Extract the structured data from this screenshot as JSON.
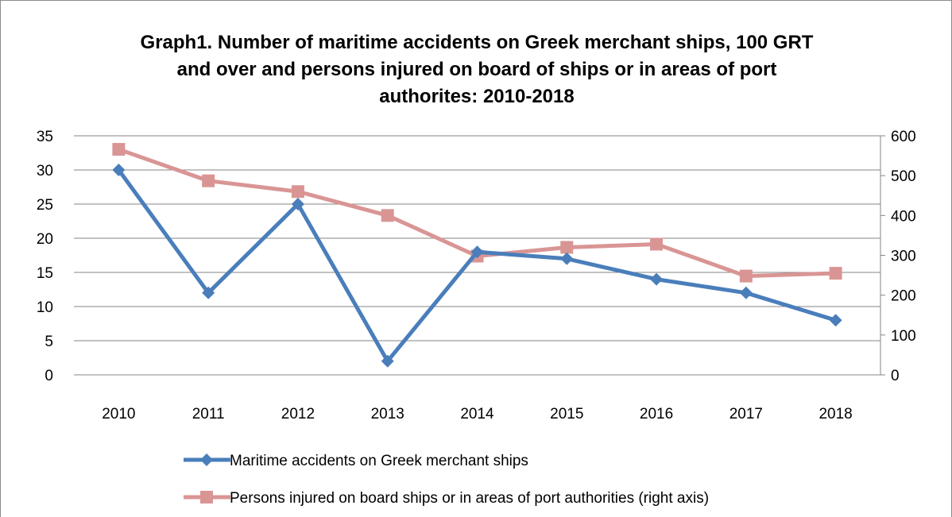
{
  "chart_data": {
    "type": "line",
    "title_lines": [
      "Graph1. Number of maritime accidents on Greek merchant ships, 100 GRT",
      "and over and persons injured on board of ships or in areas of port",
      "authorites: 2010-2018"
    ],
    "categories": [
      "2010",
      "2011",
      "2012",
      "2013",
      "2014",
      "2015",
      "2016",
      "2017",
      "2018"
    ],
    "y_left": {
      "min": 0,
      "max": 35,
      "step": 5
    },
    "y_right": {
      "min": 0,
      "max": 600,
      "step": 100
    },
    "grid": true,
    "legend_position": "bottom",
    "series": [
      {
        "name": "Maritime accidents on Greek merchant ships",
        "axis": "left",
        "color": "#4a7ebb",
        "marker": "diamond",
        "values": [
          30,
          12,
          25,
          2,
          18,
          17,
          14,
          12,
          8
        ]
      },
      {
        "name": "Persons injured on board ships or in areas of port authorities (right axis)",
        "axis": "right",
        "color": "#d99594",
        "marker": "square",
        "values": [
          566,
          487,
          460,
          400,
          298,
          320,
          328,
          248,
          255
        ]
      }
    ]
  }
}
